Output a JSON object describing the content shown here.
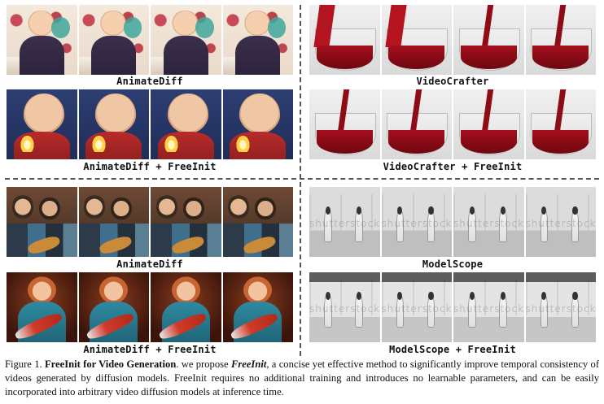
{
  "panels": {
    "animatediff_1": {
      "label": "AnimateDiff"
    },
    "animatediff_freeinit_1": {
      "label": "AnimateDiff + FreeInit"
    },
    "videocrafter": {
      "label": "VideoCrafter"
    },
    "videocrafter_freeinit": {
      "label": "VideoCrafter + FreeInit"
    },
    "animatediff_2": {
      "label": "AnimateDiff"
    },
    "animatediff_freeinit_2": {
      "label": "AnimateDiff + FreeInit"
    },
    "modelscope": {
      "label": "ModelScope",
      "watermark": "shutterstock"
    },
    "modelscope_freeinit": {
      "label": "ModelScope + FreeInit",
      "watermark": "shutterstock"
    }
  },
  "caption": {
    "figure_no": "Figure 1.",
    "title": "FreeInit for Video Generation",
    "text_a": ". we propose ",
    "method": "FreeInit",
    "text_b": ", a concise yet effective method to significantly improve temporal consistency of videos generated by diffusion models. FreeInit requires no additional training and introduces no learnable parameters, and can be easily incorporated into arbitrary video diffusion models at inference time."
  }
}
